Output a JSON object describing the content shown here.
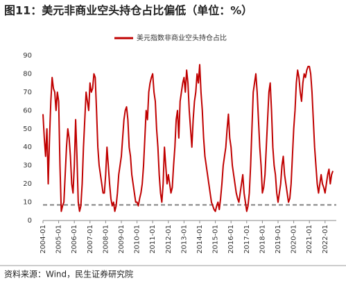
{
  "chart_data": {
    "type": "line",
    "title": "图11：美元非商业空头持仓占比偏低（单位：%）",
    "source": "资料来源：Wind，民生证券研究院",
    "x": [
      "2004-01",
      "2004-02",
      "2004-03",
      "2004-04",
      "2004-05",
      "2004-06",
      "2004-07",
      "2004-08",
      "2004-09",
      "2004-10",
      "2004-11",
      "2004-12",
      "2005-01",
      "2005-02",
      "2005-03",
      "2005-04",
      "2005-05",
      "2005-06",
      "2005-07",
      "2005-08",
      "2005-09",
      "2005-10",
      "2005-11",
      "2005-12",
      "2006-01",
      "2006-02",
      "2006-03",
      "2006-04",
      "2006-05",
      "2006-06",
      "2006-07",
      "2006-08",
      "2006-09",
      "2006-10",
      "2006-11",
      "2006-12",
      "2007-01",
      "2007-02",
      "2007-03",
      "2007-04",
      "2007-05",
      "2007-06",
      "2007-07",
      "2007-08",
      "2007-09",
      "2007-10",
      "2007-11",
      "2007-12",
      "2008-01",
      "2008-02",
      "2008-03",
      "2008-04",
      "2008-05",
      "2008-06",
      "2008-07",
      "2008-08",
      "2008-09",
      "2008-10",
      "2008-11",
      "2008-12",
      "2009-01",
      "2009-02",
      "2009-03",
      "2009-04",
      "2009-05",
      "2009-06",
      "2009-07",
      "2009-08",
      "2009-09",
      "2009-10",
      "2009-11",
      "2009-12",
      "2010-01",
      "2010-02",
      "2010-03",
      "2010-04",
      "2010-05",
      "2010-06",
      "2010-07",
      "2010-08",
      "2010-09",
      "2010-10",
      "2010-11",
      "2010-12",
      "2011-01",
      "2011-02",
      "2011-03",
      "2011-04",
      "2011-05",
      "2011-06",
      "2011-07",
      "2011-08",
      "2011-09",
      "2011-10",
      "2011-11",
      "2011-12",
      "2012-01",
      "2012-02",
      "2012-03",
      "2012-04",
      "2012-05",
      "2012-06",
      "2012-07",
      "2012-08",
      "2012-09",
      "2012-10",
      "2012-11",
      "2012-12",
      "2013-01",
      "2013-02",
      "2013-03",
      "2013-04",
      "2013-05",
      "2013-06",
      "2013-07",
      "2013-08",
      "2013-09",
      "2013-10",
      "2013-11",
      "2013-12",
      "2014-01",
      "2014-02",
      "2014-03",
      "2014-04",
      "2014-05",
      "2014-06",
      "2014-07",
      "2014-08",
      "2014-09",
      "2014-10",
      "2014-11",
      "2014-12",
      "2015-01",
      "2015-02",
      "2015-03",
      "2015-04",
      "2015-05",
      "2015-06",
      "2015-07",
      "2015-08",
      "2015-09",
      "2015-10",
      "2015-11",
      "2015-12",
      "2016-01",
      "2016-02",
      "2016-03",
      "2016-04",
      "2016-05",
      "2016-06",
      "2016-07",
      "2016-08",
      "2016-09",
      "2016-10",
      "2016-11",
      "2016-12",
      "2017-01",
      "2017-02",
      "2017-03",
      "2017-04",
      "2017-05",
      "2017-06",
      "2017-07",
      "2017-08",
      "2017-09",
      "2017-10",
      "2017-11",
      "2017-12",
      "2018-01",
      "2018-02",
      "2018-03",
      "2018-04",
      "2018-05",
      "2018-06",
      "2018-07",
      "2018-08",
      "2018-09",
      "2018-10",
      "2018-11",
      "2018-12",
      "2019-01",
      "2019-02",
      "2019-03",
      "2019-04",
      "2019-05",
      "2019-06",
      "2019-07",
      "2019-08",
      "2019-09",
      "2019-10",
      "2019-11",
      "2019-12",
      "2020-01",
      "2020-02",
      "2020-03",
      "2020-04",
      "2020-05",
      "2020-06",
      "2020-07",
      "2020-08",
      "2020-09",
      "2020-10",
      "2020-11",
      "2020-12",
      "2021-01",
      "2021-02",
      "2021-03",
      "2021-04",
      "2021-05",
      "2021-06",
      "2021-07",
      "2021-08",
      "2021-09",
      "2021-10",
      "2021-11",
      "2021-12",
      "2022-01",
      "2022-02",
      "2022-03",
      "2022-04",
      "2022-05",
      "2022-06",
      "2022-07"
    ],
    "series": [
      {
        "name": "美元指数非商业空头持仓占比",
        "color": "#c00000",
        "values": [
          58,
          45,
          35,
          50,
          20,
          45,
          65,
          78,
          72,
          70,
          60,
          70,
          65,
          30,
          5,
          8,
          10,
          25,
          40,
          50,
          45,
          35,
          20,
          15,
          30,
          55,
          35,
          10,
          5,
          8,
          20,
          40,
          55,
          70,
          65,
          60,
          75,
          70,
          72,
          80,
          78,
          60,
          40,
          30,
          25,
          20,
          15,
          15,
          25,
          40,
          30,
          20,
          12,
          8,
          10,
          5,
          8,
          15,
          25,
          30,
          35,
          45,
          55,
          60,
          62,
          55,
          40,
          35,
          25,
          20,
          15,
          10,
          10,
          8,
          12,
          15,
          20,
          30,
          45,
          60,
          55,
          70,
          75,
          78,
          80,
          70,
          65,
          50,
          40,
          25,
          15,
          10,
          20,
          40,
          30,
          20,
          25,
          20,
          15,
          18,
          30,
          40,
          55,
          60,
          45,
          65,
          70,
          75,
          78,
          70,
          82,
          75,
          60,
          50,
          40,
          55,
          65,
          70,
          80,
          75,
          85,
          70,
          60,
          45,
          35,
          30,
          25,
          20,
          15,
          10,
          8,
          6,
          5,
          8,
          10,
          6,
          12,
          20,
          30,
          35,
          40,
          50,
          58,
          45,
          40,
          30,
          25,
          20,
          15,
          12,
          10,
          15,
          20,
          25,
          15,
          10,
          5,
          8,
          15,
          30,
          50,
          70,
          75,
          80,
          70,
          55,
          40,
          30,
          15,
          18,
          25,
          40,
          55,
          70,
          75,
          60,
          40,
          30,
          25,
          15,
          10,
          15,
          20,
          30,
          35,
          25,
          20,
          15,
          10,
          12,
          20,
          35,
          50,
          60,
          75,
          82,
          78,
          70,
          65,
          75,
          80,
          78,
          82,
          84,
          84,
          80,
          70,
          55,
          40,
          30,
          20,
          15,
          20,
          25,
          20,
          18,
          15,
          20,
          25,
          28,
          20,
          25,
          27
        ]
      }
    ],
    "reference_value": 8.5,
    "reference_color": "#808080",
    "ylim": [
      0,
      90
    ],
    "yticks": [
      0,
      10,
      20,
      30,
      40,
      50,
      60,
      70,
      80,
      90
    ]
  }
}
